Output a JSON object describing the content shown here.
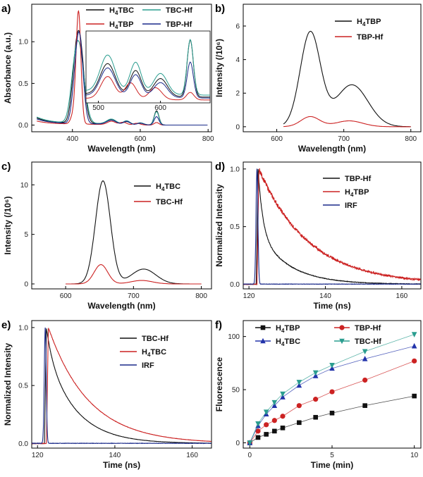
{
  "chart_data": [
    {
      "panel": "a)",
      "type": "line",
      "xlabel": "Wavelength (nm)",
      "ylabel": "Absorbance (a.u.)",
      "xlim": [
        280,
        810
      ],
      "ylim": [
        -0.08,
        1.45
      ],
      "xticks": [
        400,
        600,
        800
      ],
      "yticks": [
        0.0,
        0.5,
        1.0
      ],
      "legend": [
        "H4TBC",
        "TBC-Hf",
        "H4TBP",
        "TBP-Hf"
      ],
      "series": [
        {
          "name": "H4TBC",
          "color": "#111111",
          "baseline": 0.07,
          "tail": 0.02,
          "peaks": [
            [
              420,
              1.04,
              13
            ],
            [
              404,
              0.22,
              10
            ],
            [
              515,
              0.05,
              14
            ],
            [
              560,
              0.035,
              10
            ],
            [
              600,
              0.02,
              10
            ],
            [
              648,
              0.17,
              7
            ]
          ]
        },
        {
          "name": "TBC-Hf",
          "color": "#2a9d8f",
          "baseline": 0.08,
          "tail": 0.02,
          "peaks": [
            [
              420,
              0.86,
              15
            ],
            [
              404,
              0.26,
              12
            ],
            [
              515,
              0.06,
              14
            ],
            [
              560,
              0.045,
              10
            ],
            [
              600,
              0.025,
              10
            ],
            [
              648,
              0.16,
              7
            ]
          ]
        },
        {
          "name": "H4TBP",
          "color": "#cc2222",
          "baseline": 0.04,
          "tail": 0.01,
          "peaks": [
            [
              418,
              1.33,
              7
            ],
            [
              404,
              0.12,
              8
            ],
            [
              515,
              0.04,
              12
            ],
            [
              550,
              0.03,
              10
            ],
            [
              590,
              0.02,
              10
            ],
            [
              648,
              0.03,
              7
            ]
          ]
        },
        {
          "name": "TBP-Hf",
          "color": "#1a2a8a",
          "baseline": 0.06,
          "tail": 0.015,
          "peaks": [
            [
              420,
              1.06,
              11
            ],
            [
              404,
              0.18,
              9
            ],
            [
              515,
              0.05,
              14
            ],
            [
              560,
              0.04,
              10
            ],
            [
              600,
              0.02,
              10
            ],
            [
              648,
              0.1,
              7
            ]
          ]
        }
      ],
      "inset": {
        "xlim": [
          480,
          680
        ],
        "ylim": [
          0,
          0.24
        ],
        "xticks": [
          500,
          600
        ]
      }
    },
    {
      "panel": "b)",
      "type": "line",
      "xlabel": "Wavelength (nm)",
      "ylabel": "Intensity (/10⁶)",
      "xlim": [
        550,
        815
      ],
      "ylim": [
        -0.3,
        7.3
      ],
      "xticks": [
        600,
        700,
        800
      ],
      "yticks": [
        0,
        2,
        4,
        6
      ],
      "legend": [
        "H4TBP",
        "TBP-Hf"
      ],
      "series": [
        {
          "name": "H4TBP",
          "color": "#111111",
          "range": [
            610,
            800
          ],
          "peaks": [
            [
              650,
              5.6,
              15
            ],
            [
              712,
              2.5,
              24
            ]
          ]
        },
        {
          "name": "TBP-Hf",
          "color": "#cc2222",
          "range": [
            610,
            800
          ],
          "peaks": [
            [
              650,
              0.6,
              14
            ],
            [
              708,
              0.35,
              20
            ]
          ]
        }
      ]
    },
    {
      "panel": "c)",
      "type": "line",
      "xlabel": "Wavelength (nm)",
      "ylabel": "Intensity (/10⁶)",
      "xlim": [
        550,
        815
      ],
      "ylim": [
        -0.5,
        12.3
      ],
      "xticks": [
        600,
        700,
        800
      ],
      "yticks": [
        0,
        5,
        10
      ],
      "legend": [
        "H4TBC",
        "TBC-Hf"
      ],
      "series": [
        {
          "name": "H4TBC",
          "color": "#111111",
          "range": [
            600,
            800
          ],
          "peaks": [
            [
              655,
              10.4,
              11
            ],
            [
              715,
              1.5,
              18
            ]
          ]
        },
        {
          "name": "TBC-Hf",
          "color": "#cc2222",
          "range": [
            600,
            800
          ],
          "peaks": [
            [
              652,
              1.95,
              10
            ],
            [
              712,
              0.35,
              16
            ]
          ]
        }
      ]
    },
    {
      "panel": "d)",
      "type": "line",
      "xlabel": "Time (ns)",
      "ylabel": "Normalized Intensity",
      "xlim": [
        118.5,
        165
      ],
      "ylim": [
        -0.04,
        1.06
      ],
      "xticks": [
        120,
        140,
        160
      ],
      "yticks": [
        0.0,
        0.5,
        1.0
      ],
      "legend": [
        "TBP-Hf",
        "H4TBP",
        "IRF"
      ],
      "series": [
        {
          "name": "TBP-Hf",
          "color": "#111111",
          "kind": "decay",
          "t0": 122.4,
          "fast": [
            0.55,
            1.2
          ],
          "slow": [
            0.45,
            8
          ],
          "noise": 0.01
        },
        {
          "name": "H4TBP",
          "color": "#cc2222",
          "kind": "decay",
          "t0": 122.6,
          "fast": [
            0.0,
            1
          ],
          "slow": [
            1.0,
            13
          ],
          "noise": 0.03
        },
        {
          "name": "IRF",
          "color": "#1a2a8a",
          "kind": "pulse",
          "t0": 122.1,
          "width": 0.25
        }
      ]
    },
    {
      "panel": "e)",
      "type": "line",
      "xlabel": "Time (ns)",
      "ylabel": "Normalized Intensity",
      "xlim": [
        118.5,
        165
      ],
      "ylim": [
        -0.04,
        1.06
      ],
      "xticks": [
        120,
        140,
        160
      ],
      "yticks": [
        0.0,
        0.5,
        1.0
      ],
      "legend": [
        "TBC-Hf",
        "H4TBC",
        "IRF"
      ],
      "series": [
        {
          "name": "TBC-Hf",
          "color": "#111111",
          "kind": "decay",
          "t0": 122.3,
          "fast": [
            0.2,
            1.5
          ],
          "slow": [
            0.8,
            7.5
          ],
          "noise": 0.004
        },
        {
          "name": "H4TBC",
          "color": "#cc2222",
          "kind": "decay",
          "t0": 122.8,
          "fast": [
            0.0,
            1
          ],
          "slow": [
            1.0,
            10.5
          ],
          "noise": 0.004
        },
        {
          "name": "IRF",
          "color": "#1a2a8a",
          "kind": "pulse",
          "t0": 122.0,
          "width": 0.25
        }
      ]
    },
    {
      "panel": "f)",
      "type": "scatter",
      "xlabel": "Time (min)",
      "ylabel": "Fluorescence",
      "xlim": [
        -0.4,
        10.4
      ],
      "ylim": [
        -5,
        115
      ],
      "xticks": [
        0,
        5,
        10
      ],
      "yticks": [
        0,
        50,
        100
      ],
      "legend": [
        "H4TBP",
        "TBP-Hf",
        "H4TBC",
        "TBC-Hf"
      ],
      "x": [
        0,
        0.5,
        1,
        1.5,
        2,
        3,
        4,
        5,
        7,
        10
      ],
      "series": [
        {
          "name": "H4TBP",
          "color": "#111111",
          "marker": "square",
          "values": [
            0,
            5,
            8,
            11,
            14,
            19,
            24,
            28,
            35,
            44
          ]
        },
        {
          "name": "TBP-Hf",
          "color": "#cc2222",
          "marker": "circle",
          "values": [
            0,
            11,
            17,
            21,
            25,
            35,
            41,
            48,
            59,
            77
          ]
        },
        {
          "name": "H4TBC",
          "color": "#2233aa",
          "marker": "triangle-up",
          "values": [
            0,
            16,
            27,
            35,
            43,
            54,
            63,
            70,
            79,
            91
          ]
        },
        {
          "name": "TBC-Hf",
          "color": "#2a9d8f",
          "marker": "triangle-down",
          "values": [
            0,
            18,
            29,
            38,
            46,
            57,
            66,
            73,
            86,
            102
          ]
        }
      ]
    }
  ]
}
